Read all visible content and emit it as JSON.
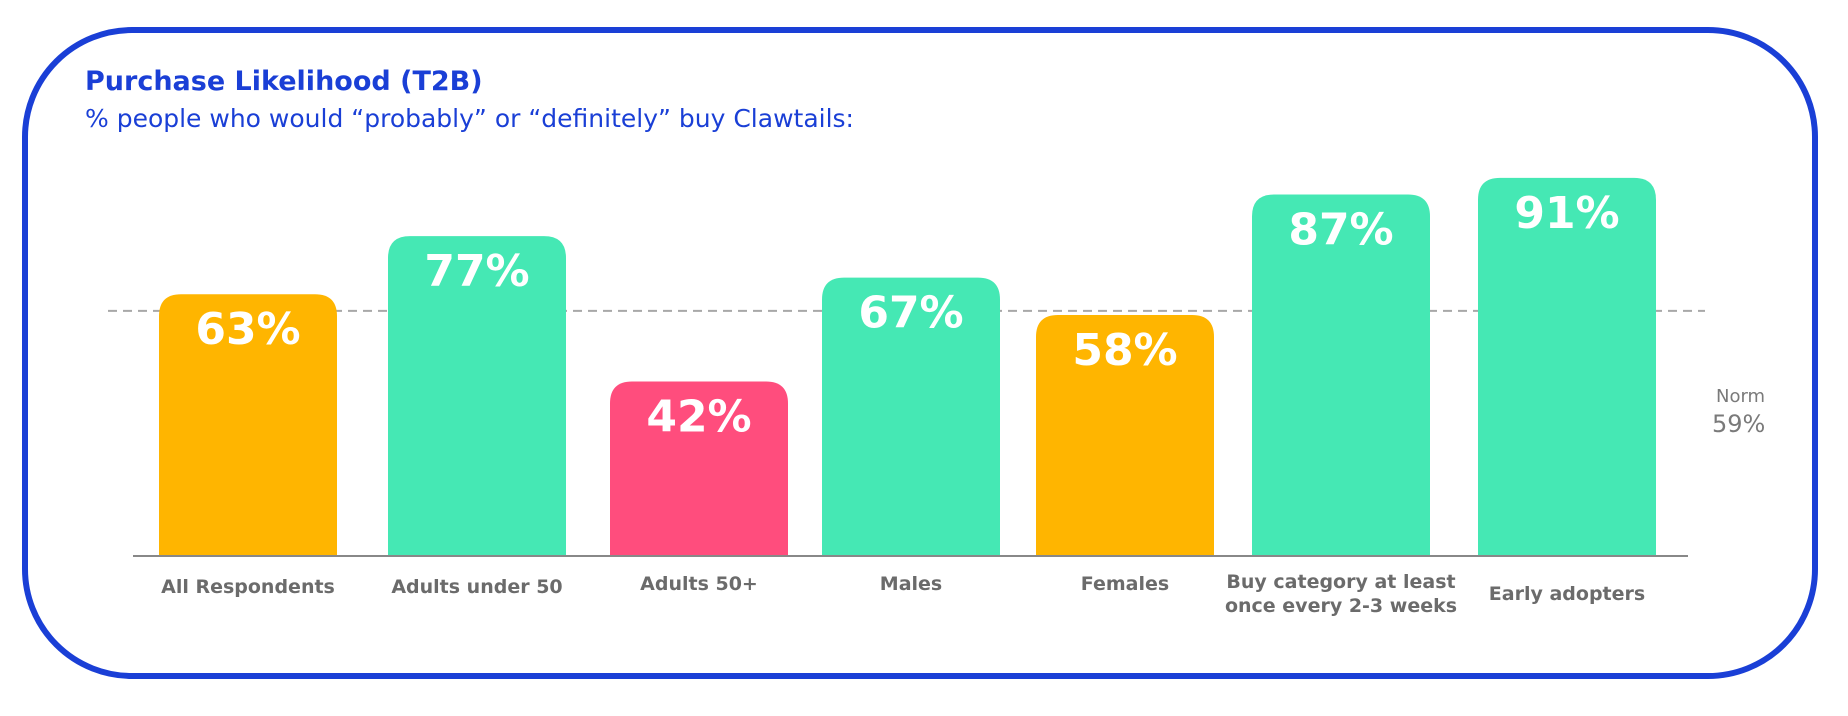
{
  "title": "Purchase Likelihood (T2B)",
  "subtitle": "% people who would “probably” or “definitely” buy Clawtails:",
  "colors": {
    "border": "#1a3fd6",
    "text_blue": "#1a3fd6",
    "above_norm": "#45e8b4",
    "near_norm": "#ffb500",
    "below_norm": "#ff4d7d",
    "label_gray": "#6b6b6b",
    "norm_line": "#a8a8a8",
    "baseline": "#888888"
  },
  "chart_data": {
    "type": "bar",
    "categories": [
      "All Respondents",
      "Adults under 50",
      "Adults 50+",
      "Males",
      "Females",
      "Buy category at least once every 2-3 weeks",
      "Early adopters"
    ],
    "values": [
      63,
      77,
      42,
      67,
      58,
      87,
      91
    ],
    "value_labels": [
      "63%",
      "77%",
      "42%",
      "67%",
      "58%",
      "87%",
      "91%"
    ],
    "bar_colors": [
      "#ffb500",
      "#45e8b4",
      "#ff4d7d",
      "#45e8b4",
      "#ffb500",
      "#45e8b4",
      "#45e8b4"
    ],
    "norm": {
      "label": "Norm",
      "value": 59,
      "value_label": "59%"
    },
    "ylim": [
      0,
      100
    ],
    "grid": false,
    "xlabel": "",
    "ylabel": ""
  }
}
